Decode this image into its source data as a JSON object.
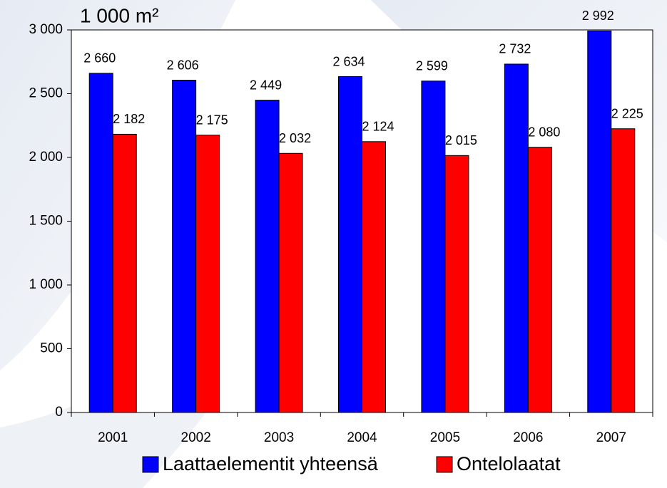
{
  "chart_data": {
    "type": "bar",
    "y_label": "1 000 m²",
    "categories": [
      "2001",
      "2002",
      "2003",
      "2004",
      "2005",
      "2006",
      "2007"
    ],
    "series": [
      {
        "name": "Laattaelementit yhteensä",
        "color": "#0000ff",
        "values": [
          2660,
          2606,
          2449,
          2634,
          2599,
          2732,
          2992
        ],
        "value_labels": [
          "2 660",
          "2 606",
          "2 449",
          "2 634",
          "2 599",
          "2 732",
          "2 992"
        ]
      },
      {
        "name": "Ontelolaatat",
        "color": "#ff0000",
        "values": [
          2182,
          2175,
          2032,
          2124,
          2015,
          2080,
          2225
        ],
        "value_labels": [
          "2 182",
          "2 175",
          "2 032",
          "2 124",
          "2 015",
          "2 080",
          "2 225"
        ]
      }
    ],
    "ylim": [
      0,
      3000
    ],
    "yticks": [
      0,
      500,
      {
        "value": 1000,
        "label": "1 000"
      },
      {
        "value": 1500,
        "label": "1 500"
      },
      {
        "value": 2000,
        "label": "2 000"
      },
      {
        "value": 2500,
        "label": "2 500"
      },
      {
        "value": 3000,
        "label": "3 000"
      }
    ],
    "legend": "bottom"
  }
}
